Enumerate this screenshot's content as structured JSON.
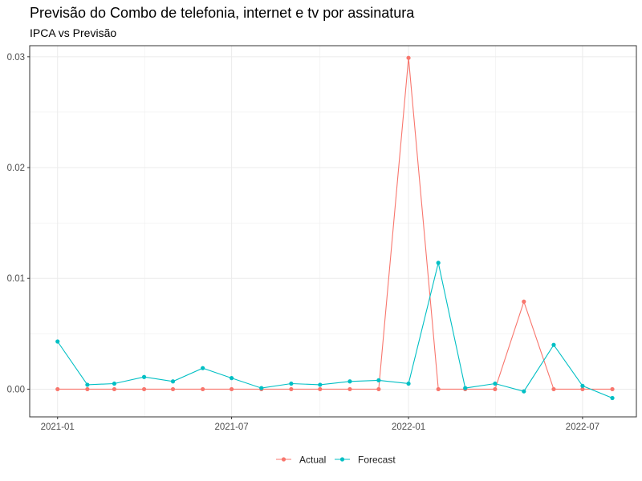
{
  "chart_data": {
    "type": "line",
    "title": "Previsão do Combo de telefonia, internet e tv por assinatura",
    "subtitle": "IPCA vs Previsão",
    "xlabel": "",
    "ylabel": "",
    "x": [
      "2021-01",
      "2021-02",
      "2021-03",
      "2021-04",
      "2021-05",
      "2021-06",
      "2021-07",
      "2021-08",
      "2021-09",
      "2021-10",
      "2021-11",
      "2021-12",
      "2022-01",
      "2022-02",
      "2022-03",
      "2022-04",
      "2022-05",
      "2022-06",
      "2022-07",
      "2022-08"
    ],
    "xlim": [
      "2020-12-03",
      "2022-08-26"
    ],
    "ylim": [
      -0.0025,
      0.031
    ],
    "x_ticks": [
      "2021-01",
      "2021-07",
      "2022-01",
      "2022-07"
    ],
    "y_ticks": [
      0.0,
      0.01,
      0.02,
      0.03
    ],
    "y_tick_labels": [
      "0.00",
      "0.01",
      "0.02",
      "0.03"
    ],
    "grid": true,
    "legend_position": "bottom",
    "series": [
      {
        "name": "Actual",
        "color": "#F8766D",
        "values": [
          0,
          0,
          0,
          0,
          0,
          0,
          0,
          0,
          0,
          0,
          0,
          0,
          0.0299,
          0,
          0,
          0,
          0.0079,
          0,
          0,
          0
        ]
      },
      {
        "name": "Forecast",
        "color": "#00BFC4",
        "values": [
          0.0043,
          0.0004,
          0.0005,
          0.0011,
          0.0007,
          0.0019,
          0.001,
          0.0001,
          0.0005,
          0.0004,
          0.0007,
          0.0008,
          0.0005,
          0.0114,
          0.0001,
          0.0005,
          -0.0002,
          0.004,
          0.0003,
          -0.0008
        ]
      }
    ]
  }
}
